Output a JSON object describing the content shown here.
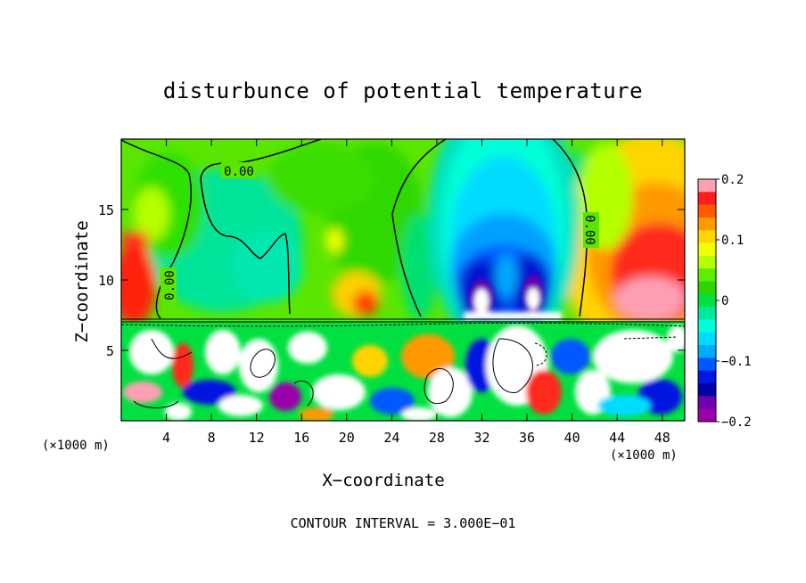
{
  "chart_data": {
    "type": "heatmap",
    "title": "disturbunce of potential temperature",
    "xlabel": "X−coordinate",
    "ylabel": "Z−coordinate",
    "x_unit": "(×1000 m)",
    "xlim": [
      0,
      50
    ],
    "ylim": [
      0,
      20
    ],
    "x_ticks": [
      4,
      8,
      12,
      16,
      20,
      24,
      28,
      32,
      36,
      40,
      44,
      48
    ],
    "y_ticks": [
      5,
      10,
      15
    ],
    "colorbar": {
      "range": [
        -0.2,
        0.2
      ],
      "tick_labels": [
        "0.2",
        "0.1",
        "0",
        "−0.1",
        "−0.2"
      ],
      "tick_values": [
        0.2,
        0.1,
        0,
        -0.1,
        -0.2
      ],
      "colors": [
        "#ff9fb4",
        "#ff1e1e",
        "#ff5a00",
        "#ff9900",
        "#ffd400",
        "#f2ff00",
        "#b4ff00",
        "#5aef00",
        "#2dd400",
        "#00e040",
        "#00e89a",
        "#00ffd8",
        "#00dcff",
        "#00aaff",
        "#0058ff",
        "#0018e0",
        "#0000aa",
        "#7000b0",
        "#9a00aa"
      ]
    },
    "contour_labels": [
      "0.00",
      "0.00",
      "0.00"
    ],
    "contour_interval_text": "CONTOUR INTERVAL = 3.000E−01",
    "inversion_height": 7.3,
    "features": [
      {
        "kind": "cold",
        "x": 35,
        "z": 11,
        "value": -0.2
      },
      {
        "kind": "warm",
        "x": 46,
        "z": 10.5,
        "value": 0.15
      },
      {
        "kind": "warm",
        "x": 1,
        "z": 10,
        "value": 0.15
      },
      {
        "kind": "warm",
        "x": 21.5,
        "z": 9,
        "value": 0.15
      }
    ]
  }
}
